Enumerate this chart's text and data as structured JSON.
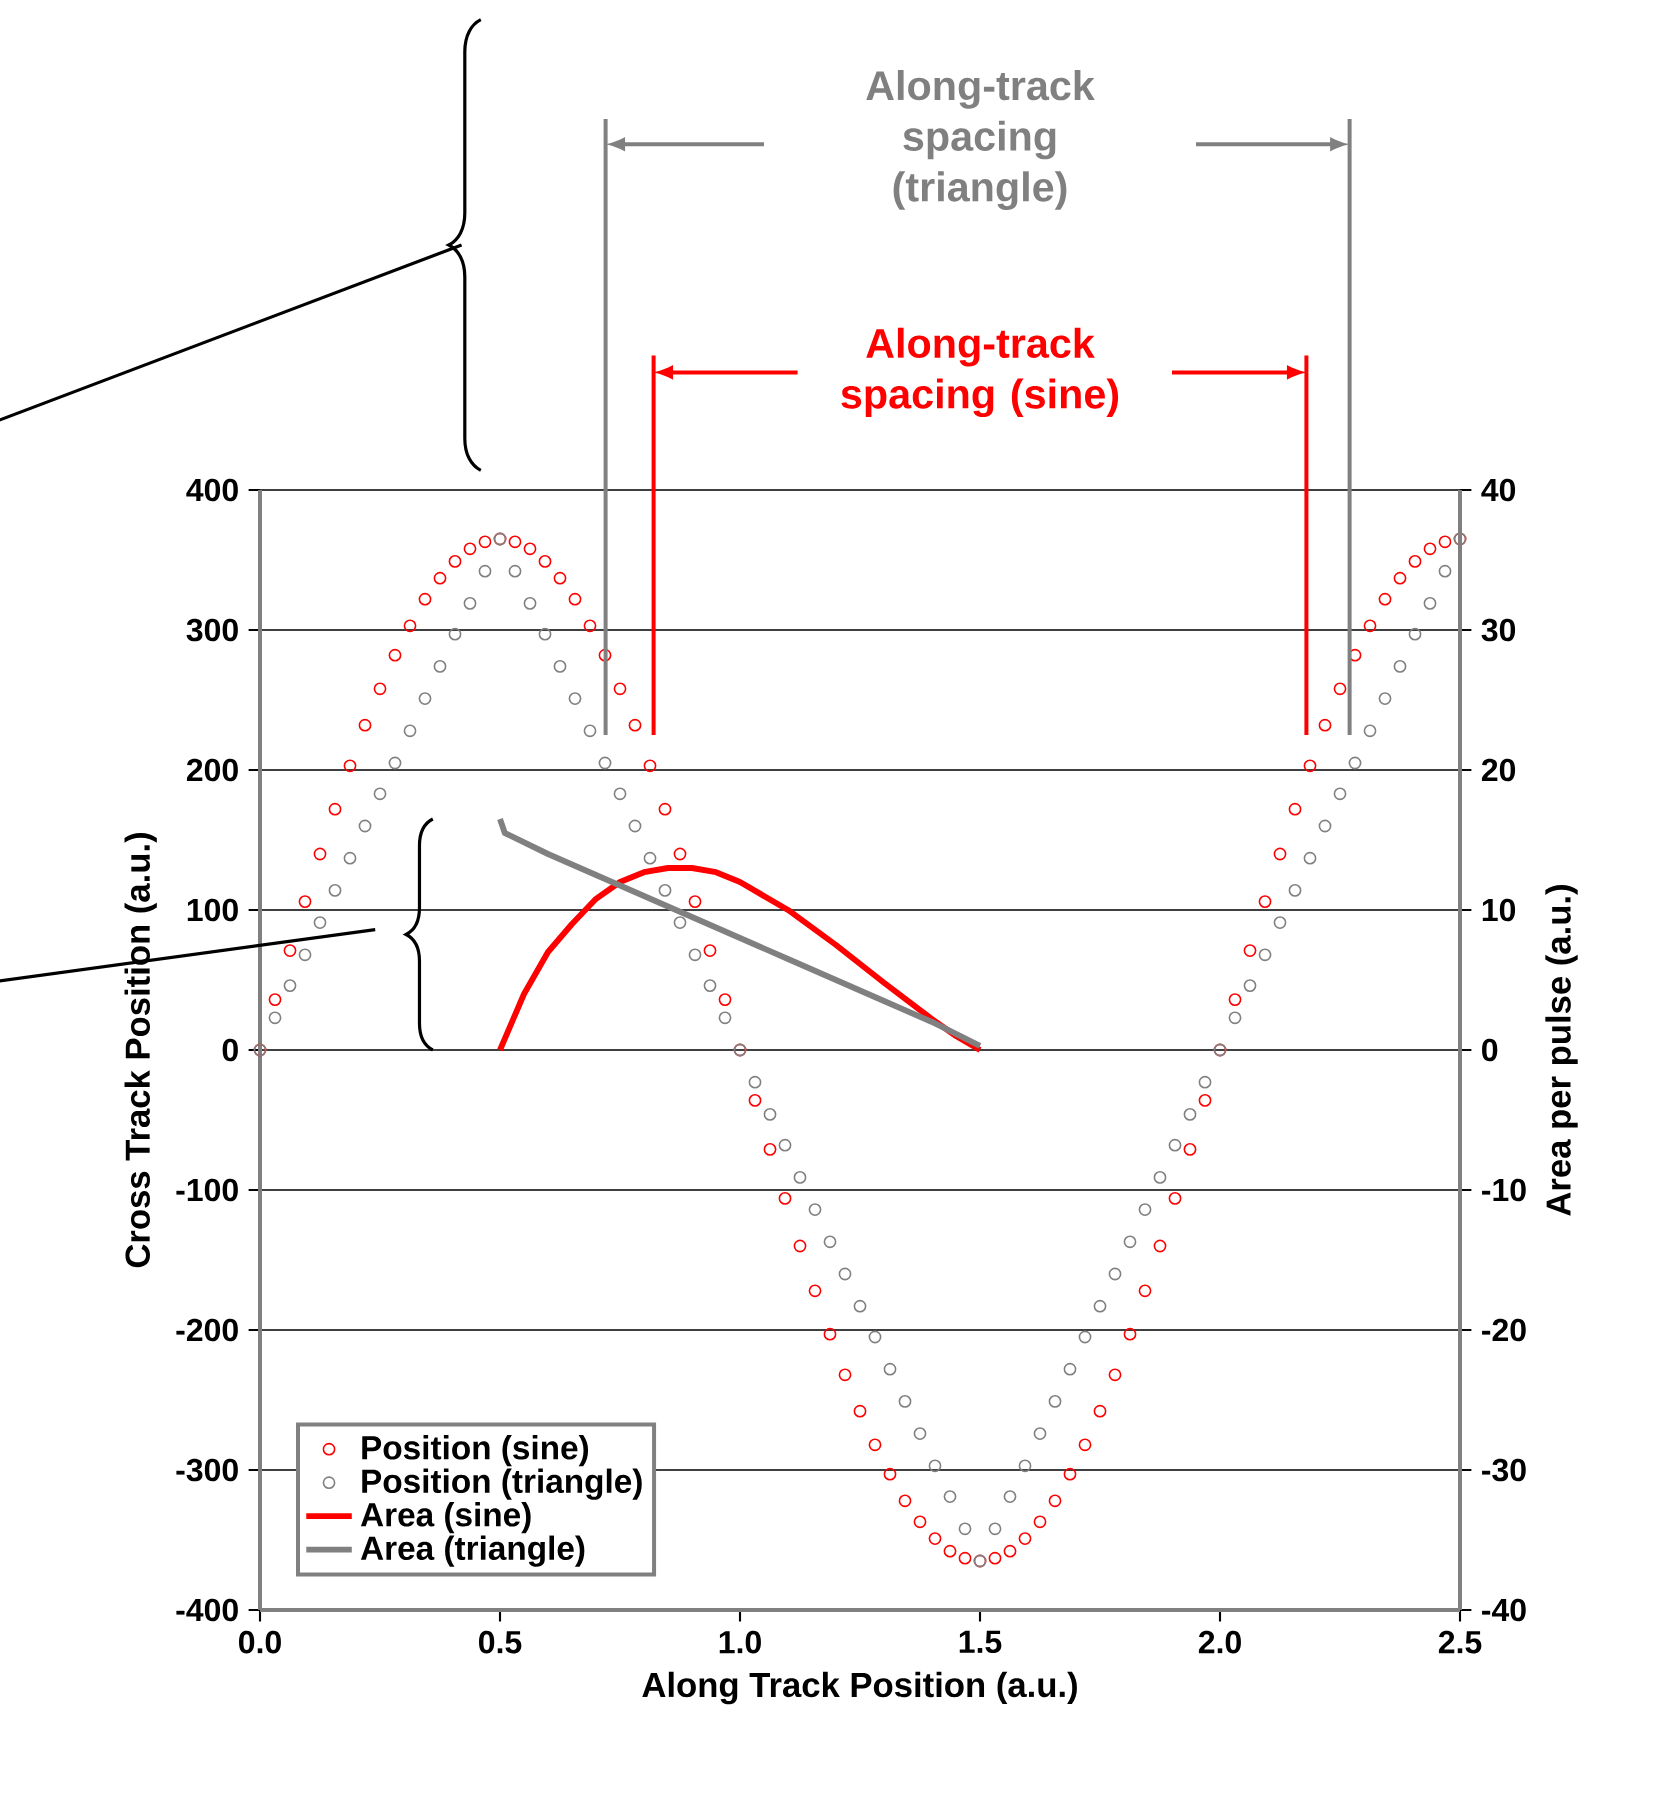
{
  "chart_data": {
    "type": "scatter",
    "xlabel": "Along Track Position (a.u.)",
    "ylabel": "Cross Track Position (a.u.)",
    "y2label": "Area per pulse (a.u.)",
    "annotations": [
      "Along-track spacing (triangle)",
      "Along-track spacing (sine)"
    ],
    "xlim": [
      0,
      2.5
    ],
    "xticks": [
      {
        "value": 0,
        "label": "0.0"
      },
      {
        "value": 0.5,
        "label": "0.5"
      },
      {
        "value": 1,
        "label": "1.0"
      },
      {
        "value": 1.5,
        "label": "1.5"
      },
      {
        "value": 2,
        "label": "2.0"
      },
      {
        "value": 2.5,
        "label": "2.5"
      }
    ],
    "ylim": [
      -400,
      400
    ],
    "yticks": [
      -400,
      -300,
      -200,
      -100,
      0,
      100,
      200,
      300,
      400
    ],
    "y2lim": [
      -40,
      40
    ],
    "y2ticks": [
      -40,
      -30,
      -20,
      -10,
      0,
      10,
      20,
      30,
      40
    ],
    "grid": "y",
    "legend": "bottom left",
    "marker": "circle",
    "x": [
      0,
      0.03125,
      0.0625,
      0.09375,
      0.125,
      0.15625,
      0.1875,
      0.21875,
      0.25,
      0.28125,
      0.3125,
      0.34375,
      0.375,
      0.40625,
      0.4375,
      0.46875,
      0.5,
      0.53125,
      0.5625,
      0.59375,
      0.625,
      0.65625,
      0.6875,
      0.71875,
      0.75,
      0.78125,
      0.8125,
      0.84375,
      0.875,
      0.90625,
      0.9375,
      0.96875,
      1,
      1.03125,
      1.0625,
      1.09375,
      1.125,
      1.15625,
      1.1875,
      1.21875,
      1.25,
      1.28125,
      1.3125,
      1.34375,
      1.375,
      1.40625,
      1.4375,
      1.46875,
      1.5,
      1.53125,
      1.5625,
      1.59375,
      1.625,
      1.65625,
      1.6875,
      1.71875,
      1.75,
      1.78125,
      1.8125,
      1.84375,
      1.875,
      1.90625,
      1.9375,
      1.96875,
      2,
      2.03125,
      2.0625,
      2.09375,
      2.125,
      2.15625,
      2.1875,
      2.21875,
      2.25,
      2.28125,
      2.3125,
      2.34375,
      2.375,
      2.40625,
      2.4375,
      2.46875,
      2.5
    ],
    "series": [
      {
        "name": "Position (sine)",
        "color": "#ff0000",
        "values": [
          0,
          36,
          71,
          106,
          140,
          172,
          203,
          232,
          258,
          282,
          303,
          322,
          337,
          349,
          358,
          363,
          365,
          363,
          358,
          349,
          337,
          322,
          303,
          282,
          258,
          232,
          203,
          172,
          140,
          106,
          71,
          36,
          0,
          -36,
          -71,
          -106,
          -140,
          -172,
          -203,
          -232,
          -258,
          -282,
          -303,
          -322,
          -337,
          -349,
          -358,
          -363,
          -365,
          -363,
          -358,
          -349,
          -337,
          -322,
          -303,
          -282,
          -258,
          -232,
          -203,
          -172,
          -140,
          -106,
          -71,
          -36,
          0,
          36,
          71,
          106,
          140,
          172,
          203,
          232,
          258,
          282,
          303,
          322,
          337,
          349,
          358,
          363,
          365
        ]
      },
      {
        "name": "Position (triangle)",
        "color": "#808080",
        "values": [
          0,
          23,
          46,
          68,
          91,
          114,
          137,
          160,
          183,
          205,
          228,
          251,
          274,
          297,
          319,
          342,
          365,
          342,
          319,
          297,
          274,
          251,
          228,
          205,
          183,
          160,
          137,
          114,
          91,
          68,
          46,
          23,
          0,
          -23,
          -46,
          -68,
          -91,
          -114,
          -137,
          -160,
          -183,
          -205,
          -228,
          -251,
          -274,
          -297,
          -319,
          -342,
          -365,
          -342,
          -319,
          -297,
          -274,
          -251,
          -228,
          -205,
          -183,
          -160,
          -137,
          -114,
          -91,
          -68,
          -46,
          -23,
          0,
          23,
          46,
          68,
          91,
          114,
          137,
          160,
          183,
          205,
          228,
          251,
          274,
          297,
          319,
          342,
          365
        ]
      },
      {
        "name": "Area (sine)",
        "type": "line",
        "marker": "none",
        "axis": "y2",
        "color": "#ff0000",
        "x": [
          0.5,
          0.55,
          0.6,
          0.65,
          0.7,
          0.75,
          0.8,
          0.85,
          0.9,
          0.95,
          1.0,
          1.1,
          1.2,
          1.3,
          1.4,
          1.45,
          1.5
        ],
        "values": [
          0,
          4,
          7,
          9,
          10.8,
          12,
          12.7,
          13,
          13,
          12.7,
          12,
          10,
          7.5,
          4.8,
          2.2,
          1,
          0
        ]
      },
      {
        "name": "Area (triangle)",
        "type": "line",
        "marker": "none",
        "axis": "y2",
        "color": "#808080",
        "x": [
          0.5,
          0.51,
          0.6,
          0.7,
          0.8,
          0.9,
          1.0,
          1.1,
          1.2,
          1.3,
          1.4,
          1.5
        ],
        "values": [
          16.5,
          15.5,
          14,
          12.5,
          11,
          9.5,
          8,
          6.5,
          5,
          3.5,
          2,
          0.3
        ]
      }
    ]
  }
}
